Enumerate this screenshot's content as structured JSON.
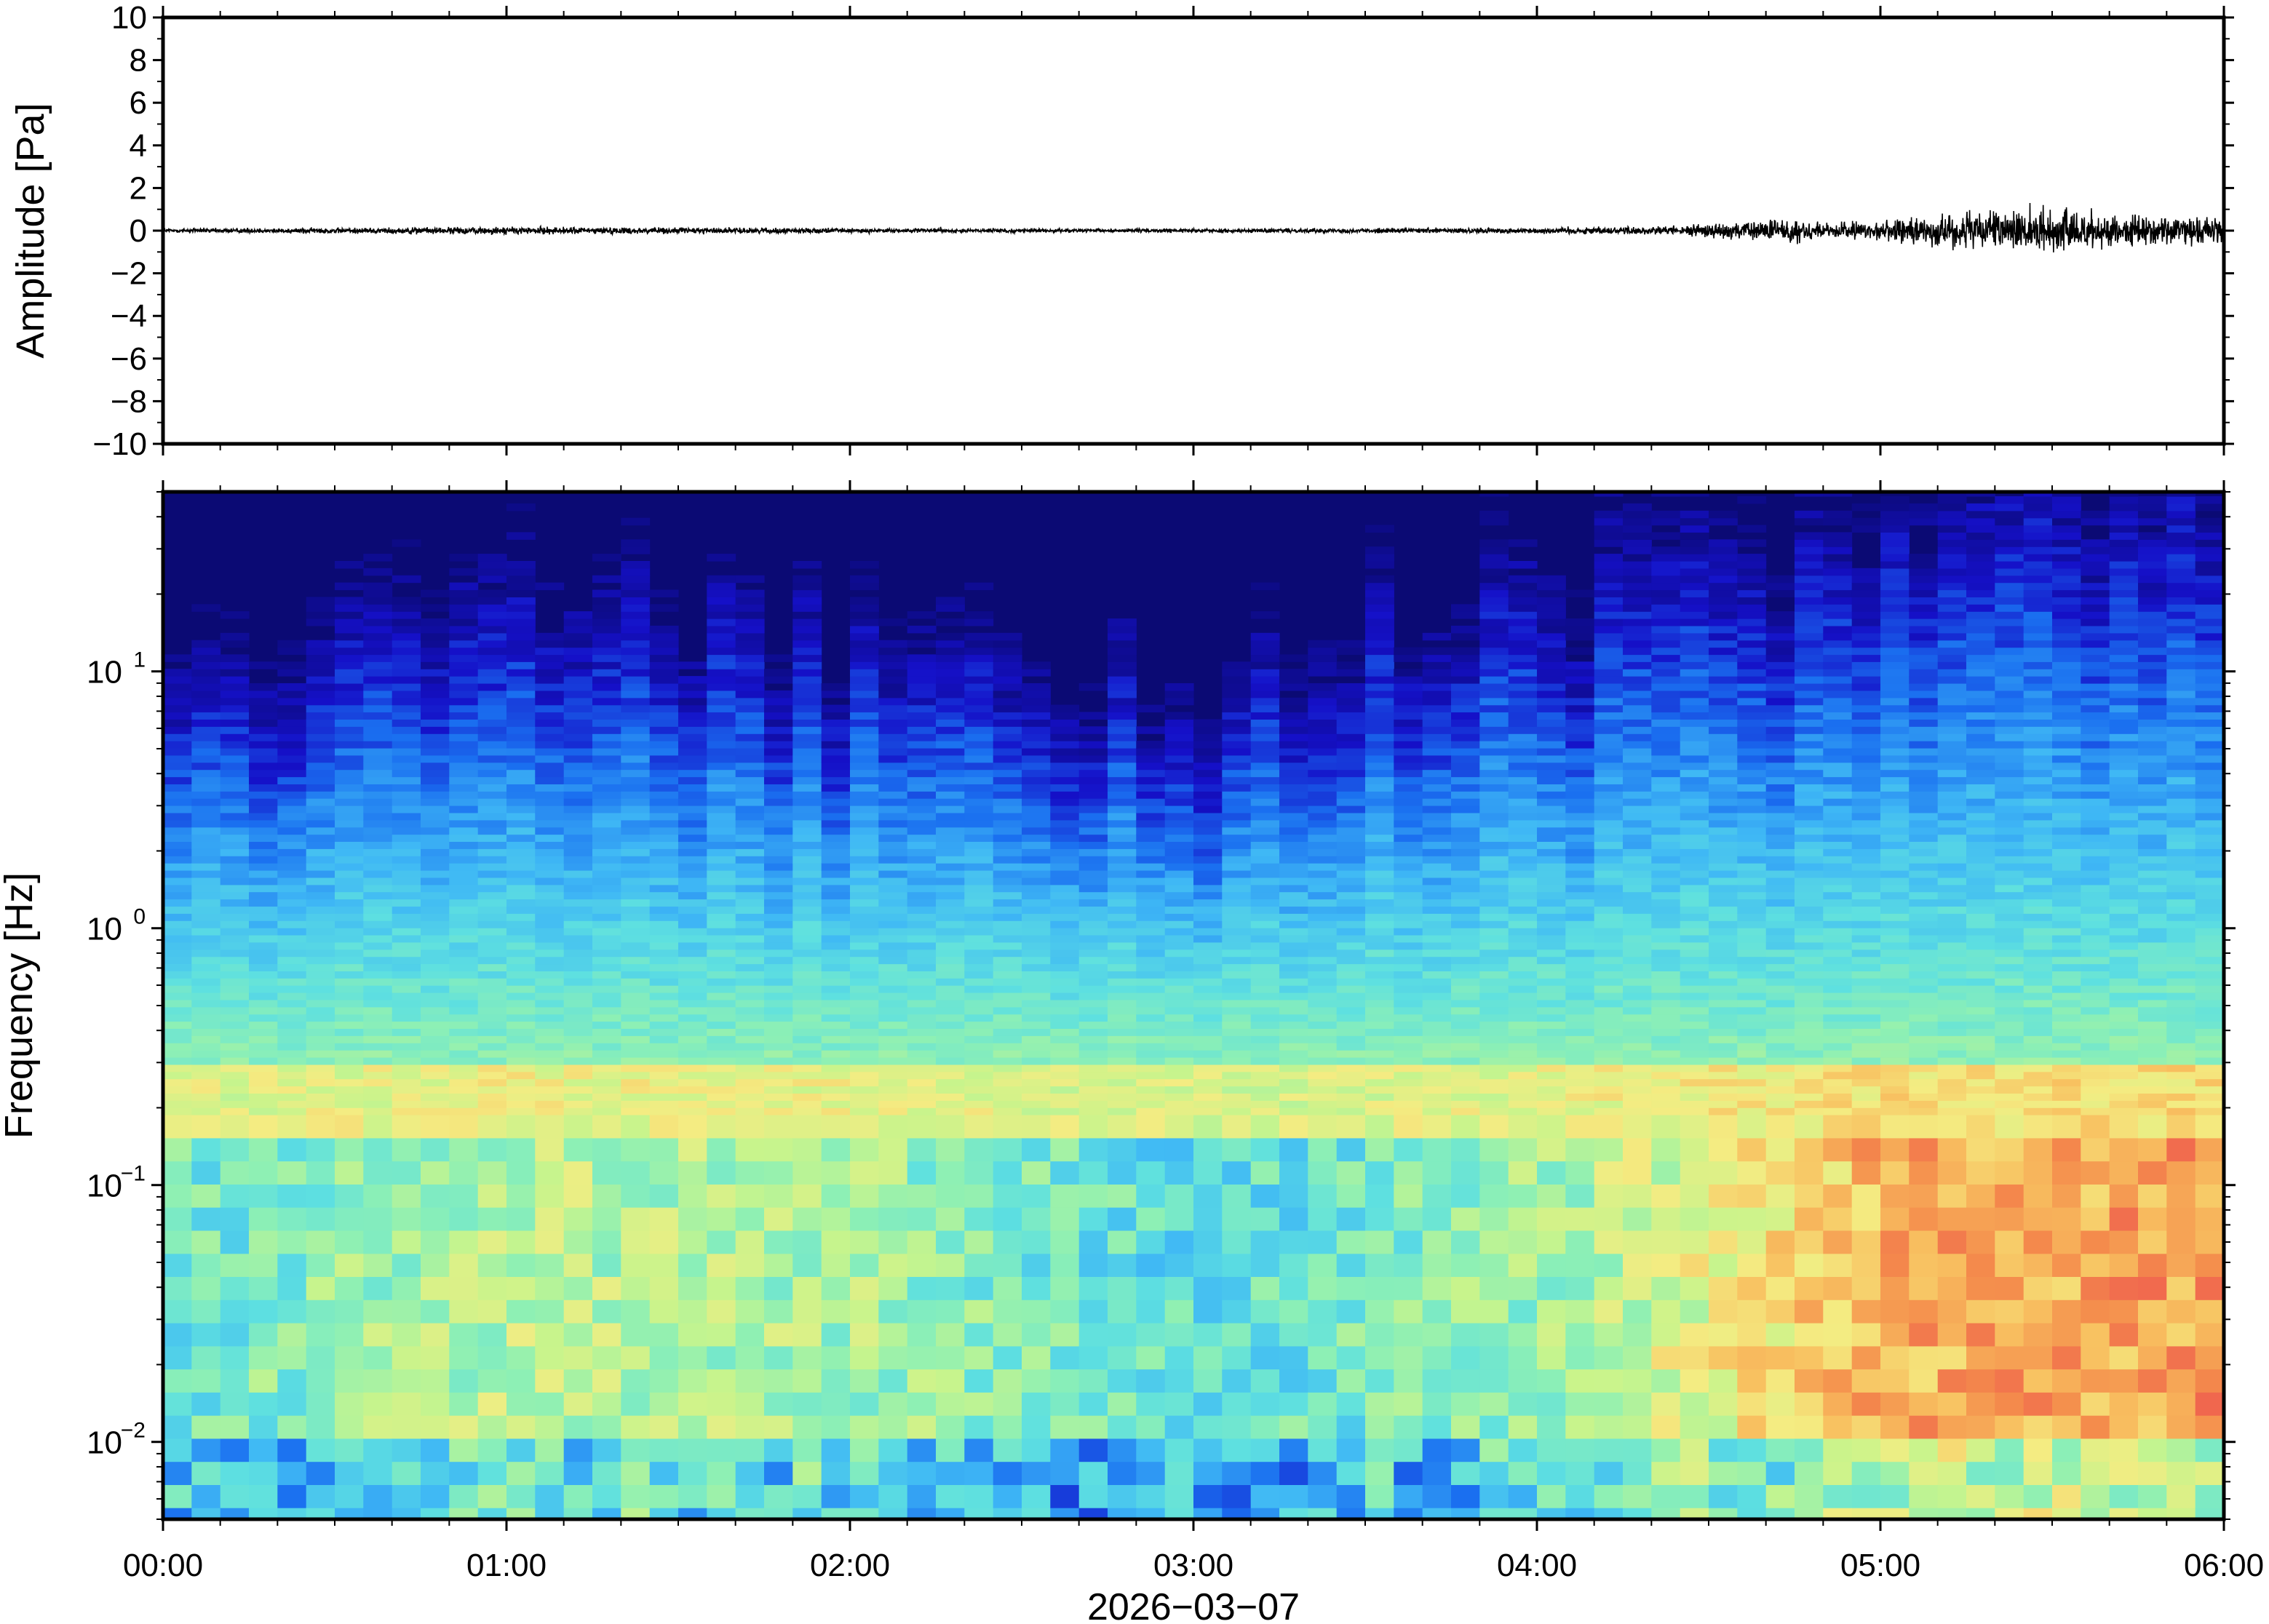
{
  "chart_data": [
    {
      "type": "line",
      "title": "",
      "ylabel": "Amplitude [Pa]",
      "ylim": [
        -10,
        10
      ],
      "yticks": [
        "10",
        "8",
        "6",
        "4",
        "2",
        "0",
        "−2",
        "−4",
        "−6",
        "−8",
        "−10"
      ],
      "ytick_values": [
        10,
        8,
        6,
        4,
        2,
        0,
        -2,
        -4,
        -6,
        -8,
        -10
      ],
      "x_range": [
        "00:00",
        "06:00"
      ],
      "grid": false,
      "series": [
        {
          "color": "#000000",
          "envelope_time_h": [
            0,
            0.5,
            1.0,
            1.5,
            2.0,
            2.5,
            3.0,
            3.5,
            4.0,
            4.4,
            4.75,
            4.85,
            5.0,
            5.15,
            5.3,
            5.5,
            5.7,
            6.0
          ],
          "envelope_amplitude_pa": [
            0.15,
            0.18,
            0.25,
            0.2,
            0.15,
            0.12,
            0.12,
            0.15,
            0.2,
            0.3,
            0.8,
            0.5,
            0.6,
            1.0,
            1.2,
            1.4,
            1.0,
            0.8
          ]
        }
      ]
    },
    {
      "type": "heatmap",
      "title": "",
      "xlabel": "2026−03−07",
      "ylabel": "Frequency [Hz]",
      "yscale": "log",
      "ylim": [
        0.005,
        50
      ],
      "ytick_base": "10",
      "ytick_exponents": [
        "1",
        "0",
        "−1",
        "−2"
      ],
      "ytick_values": [
        10,
        1,
        0.1,
        0.01
      ],
      "xticks": [
        "00:00",
        "01:00",
        "02:00",
        "03:00",
        "04:00",
        "05:00",
        "06:00"
      ],
      "xtick_values_h": [
        0,
        1,
        2,
        3,
        4,
        5,
        6
      ],
      "colormap": "jet",
      "colormap_stops": [
        "#0b0a74",
        "#1510c8",
        "#1a6ff0",
        "#3fb8f5",
        "#5ee0e0",
        "#8ef0b4",
        "#c8f48c",
        "#f4ec82",
        "#f8c060",
        "#f48c4c",
        "#ee5050"
      ],
      "low_band_intensity_by_hour": [
        0.45,
        0.62,
        0.58,
        0.4,
        0.55,
        0.9,
        0.95
      ],
      "high_freq_edge_by_hour_hz": [
        6,
        14,
        10,
        6,
        15,
        25,
        35
      ]
    }
  ]
}
